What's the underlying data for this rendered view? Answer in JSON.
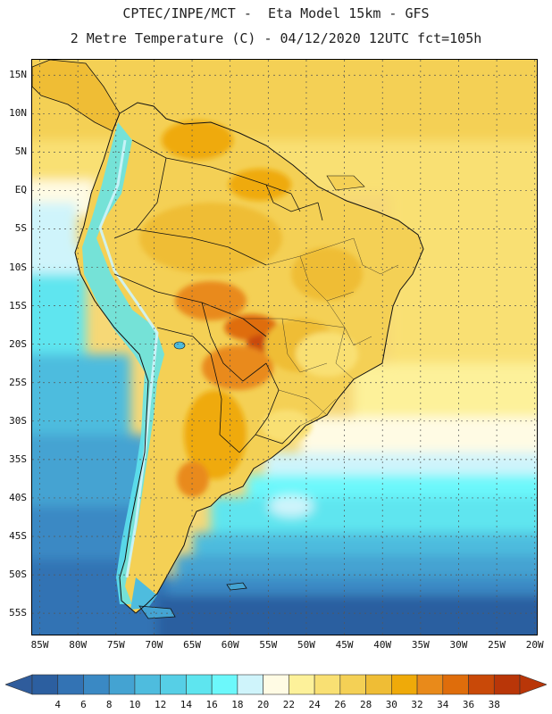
{
  "header": {
    "line1": "CPTEC/INPE/MCT -  Eta Model 15km - GFS",
    "line2": "2 Metre Temperature (C) - 04/12/2020 12UTC fct=105h"
  },
  "map": {
    "lat_labels": [
      "15N",
      "10N",
      "5N",
      "EQ",
      "5S",
      "10S",
      "15S",
      "20S",
      "25S",
      "30S",
      "35S",
      "40S",
      "45S",
      "50S",
      "55S"
    ],
    "lat_values": [
      15,
      10,
      5,
      0,
      -5,
      -10,
      -15,
      -20,
      -25,
      -30,
      -35,
      -40,
      -45,
      -50,
      -55
    ],
    "lat_range": [
      -58,
      17
    ],
    "lon_labels": [
      "85W",
      "80W",
      "75W",
      "70W",
      "65W",
      "60W",
      "55W",
      "50W",
      "45W",
      "40W",
      "35W",
      "30W",
      "25W",
      "20W"
    ],
    "lon_values": [
      -85,
      -80,
      -75,
      -70,
      -65,
      -60,
      -55,
      -50,
      -45,
      -40,
      -35,
      -30,
      -25,
      -20
    ],
    "lon_range": [
      -86,
      -19.5
    ],
    "variable": "2 Metre Temperature",
    "units": "C"
  },
  "legend": {
    "levels": [
      "4",
      "6",
      "8",
      "10",
      "12",
      "14",
      "16",
      "18",
      "20",
      "22",
      "24",
      "26",
      "28",
      "30",
      "32",
      "34",
      "36",
      "38"
    ],
    "colors": [
      "#2c5fa0",
      "#3373b4",
      "#3a89c4",
      "#44a3d2",
      "#4ebcde",
      "#56cfe6",
      "#5ee5ef",
      "#6cf8fb",
      "#cff4fb",
      "#fffbe4",
      "#fdf19a",
      "#f9e073",
      "#f4d055",
      "#efbd35",
      "#efaa09",
      "#e98a1a",
      "#df6d0b",
      "#c94908",
      "#b93608"
    ],
    "below_color": "#2f5c9c",
    "above_color": "#b93608"
  }
}
